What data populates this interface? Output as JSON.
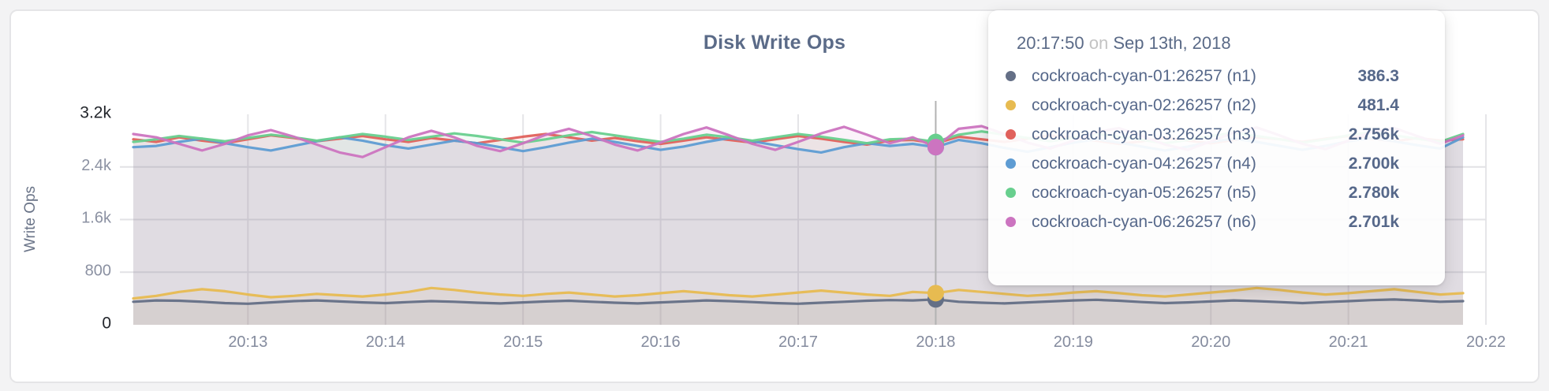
{
  "panel": {
    "title": "Disk Write Ops"
  },
  "tooltip": {
    "time": "20:17:50",
    "connector": "on",
    "date": "Sep 13th, 2018",
    "hover_index": 35,
    "rows": [
      {
        "label": "cockroach-cyan-01:26257 (n1)",
        "value": "386.3",
        "color": "#646f86"
      },
      {
        "label": "cockroach-cyan-02:26257 (n2)",
        "value": "481.4",
        "color": "#e7bb51"
      },
      {
        "label": "cockroach-cyan-03:26257 (n3)",
        "value": "2.756k",
        "color": "#e0615c"
      },
      {
        "label": "cockroach-cyan-04:26257 (n4)",
        "value": "2.700k",
        "color": "#5e9cd3"
      },
      {
        "label": "cockroach-cyan-05:26257 (n5)",
        "value": "2.780k",
        "color": "#68cf8e"
      },
      {
        "label": "cockroach-cyan-06:26257 (n6)",
        "value": "2.701k",
        "color": "#cc74c0"
      }
    ]
  },
  "chart_data": {
    "type": "line",
    "title": "Disk Write Ops",
    "xlabel": "",
    "ylabel": "Write Ops",
    "ylim": [
      0,
      3200
    ],
    "grid": true,
    "legend_position": "tooltip",
    "x_unit": "time of day (hh:mm), Sep 13th, 2018",
    "x_domain_seconds": [
      730,
      1310
    ],
    "x_step_seconds": 10,
    "x_ticks": [
      {
        "label": "20:13",
        "seconds": 780
      },
      {
        "label": "20:14",
        "seconds": 840
      },
      {
        "label": "20:15",
        "seconds": 900
      },
      {
        "label": "20:16",
        "seconds": 960
      },
      {
        "label": "20:17",
        "seconds": 1020
      },
      {
        "label": "20:18",
        "seconds": 1080
      },
      {
        "label": "20:19",
        "seconds": 1140
      },
      {
        "label": "20:20",
        "seconds": 1200
      },
      {
        "label": "20:21",
        "seconds": 1260
      },
      {
        "label": "20:22",
        "seconds": 1320
      }
    ],
    "y_ticks": [
      {
        "label": "0",
        "value": 0,
        "strong": true,
        "gridline": false
      },
      {
        "label": "800",
        "value": 800,
        "strong": false,
        "gridline": true
      },
      {
        "label": "1.6k",
        "value": 1600,
        "strong": false,
        "gridline": true
      },
      {
        "label": "2.4k",
        "value": 2400,
        "strong": false,
        "gridline": true
      },
      {
        "label": "3.2k",
        "value": 3200,
        "strong": true,
        "gridline": false
      }
    ],
    "hover": {
      "index": 35,
      "time_label": "20:17:50"
    },
    "series": [
      {
        "name": "cockroach-cyan-01:26257 (n1)",
        "color": "#646f86",
        "hover_value": 386.3,
        "values": [
          350,
          370,
          365,
          350,
          330,
          320,
          340,
          360,
          370,
          355,
          340,
          330,
          345,
          360,
          350,
          335,
          325,
          340,
          355,
          365,
          350,
          335,
          325,
          340,
          355,
          370,
          360,
          345,
          330,
          320,
          335,
          350,
          365,
          375,
          370,
          386.3,
          350,
          335,
          325,
          340,
          355,
          370,
          380,
          365,
          345,
          330,
          340,
          355,
          370,
          360,
          345,
          330,
          345,
          360,
          375,
          385,
          370,
          350,
          360
        ]
      },
      {
        "name": "cockroach-cyan-02:26257 (n2)",
        "color": "#e7bb51",
        "hover_value": 481.4,
        "values": [
          400,
          440,
          500,
          540,
          510,
          460,
          420,
          440,
          470,
          450,
          430,
          460,
          500,
          560,
          530,
          490,
          460,
          440,
          470,
          490,
          460,
          430,
          450,
          480,
          510,
          480,
          450,
          430,
          460,
          490,
          520,
          490,
          460,
          440,
          500,
          481.4,
          530,
          500,
          470,
          440,
          460,
          490,
          510,
          480,
          450,
          430,
          460,
          490,
          520,
          560,
          530,
          490,
          460,
          480,
          510,
          540,
          500,
          460,
          480
        ]
      },
      {
        "name": "cockroach-cyan-03:26257 (n3)",
        "color": "#e0615c",
        "hover_value": 2756,
        "values": [
          2820,
          2780,
          2850,
          2800,
          2760,
          2820,
          2880,
          2840,
          2790,
          2830,
          2870,
          2820,
          2780,
          2840,
          2800,
          2760,
          2810,
          2860,
          2900,
          2850,
          2800,
          2840,
          2790,
          2750,
          2800,
          2850,
          2810,
          2770,
          2820,
          2870,
          2830,
          2780,
          2740,
          2800,
          2810,
          2756,
          2860,
          2820,
          2780,
          2830,
          2880,
          2840,
          2800,
          2750,
          2790,
          2840,
          2800,
          2760,
          2810,
          2850,
          2820,
          2780,
          2830,
          2870,
          2830,
          2790,
          2840,
          2800,
          2820
        ]
      },
      {
        "name": "cockroach-cyan-04:26257 (n4)",
        "color": "#5e9cd3",
        "hover_value": 2700,
        "values": [
          2700,
          2720,
          2780,
          2830,
          2760,
          2700,
          2650,
          2720,
          2790,
          2850,
          2800,
          2730,
          2680,
          2740,
          2800,
          2760,
          2700,
          2640,
          2700,
          2770,
          2830,
          2780,
          2720,
          2660,
          2710,
          2780,
          2840,
          2790,
          2730,
          2670,
          2620,
          2700,
          2760,
          2720,
          2750,
          2700,
          2810,
          2760,
          2690,
          2630,
          2700,
          2770,
          2820,
          2770,
          2710,
          2650,
          2710,
          2780,
          2830,
          2780,
          2720,
          2660,
          2720,
          2790,
          2840,
          2790,
          2730,
          2680,
          2850
        ]
      },
      {
        "name": "cockroach-cyan-05:26257 (n5)",
        "color": "#68cf8e",
        "hover_value": 2780,
        "values": [
          2780,
          2820,
          2870,
          2830,
          2790,
          2840,
          2890,
          2850,
          2800,
          2850,
          2900,
          2860,
          2810,
          2860,
          2910,
          2870,
          2820,
          2770,
          2820,
          2880,
          2930,
          2880,
          2830,
          2780,
          2830,
          2890,
          2850,
          2800,
          2850,
          2900,
          2860,
          2810,
          2760,
          2820,
          2830,
          2780,
          2890,
          2940,
          2890,
          2840,
          2790,
          2840,
          2900,
          2860,
          2810,
          2760,
          2810,
          2870,
          2920,
          2870,
          2820,
          2770,
          2820,
          2880,
          2930,
          2880,
          2830,
          2780,
          2900
        ]
      },
      {
        "name": "cockroach-cyan-06:26257 (n6)",
        "color": "#cc74c0",
        "hover_value": 2701,
        "values": [
          2900,
          2850,
          2750,
          2650,
          2750,
          2880,
          2960,
          2860,
          2740,
          2620,
          2550,
          2700,
          2850,
          2950,
          2850,
          2720,
          2640,
          2760,
          2890,
          2980,
          2870,
          2740,
          2650,
          2770,
          2900,
          3000,
          2880,
          2750,
          2660,
          2780,
          2910,
          3010,
          2890,
          2760,
          2850,
          2701,
          2980,
          3020,
          2900,
          2770,
          2680,
          2800,
          2930,
          2990,
          2870,
          2740,
          2660,
          2790,
          2920,
          3000,
          2880,
          2750,
          2670,
          2800,
          2930,
          2990,
          2870,
          2750,
          2880
        ]
      }
    ]
  }
}
